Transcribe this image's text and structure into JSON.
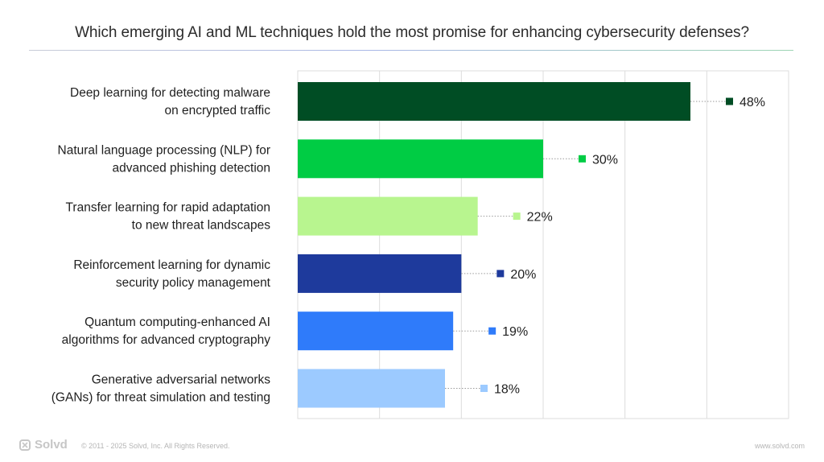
{
  "title": "Which emerging AI and ML techniques hold the most promise for enhancing cybersecurity defenses?",
  "chart_data": {
    "type": "bar",
    "orientation": "horizontal",
    "categories": [
      [
        "Deep learning for detecting malware",
        "on encrypted traffic"
      ],
      [
        "Natural language processing (NLP) for",
        "advanced phishing detection"
      ],
      [
        "Transfer learning for rapid adaptation",
        "to new threat landscapes"
      ],
      [
        "Reinforcement learning for dynamic",
        "security policy management"
      ],
      [
        "Quantum computing-enhanced AI",
        "algorithms for advanced cryptography"
      ],
      [
        "Generative adversarial networks",
        "(GANs) for threat simulation and testing"
      ]
    ],
    "values": [
      48,
      30,
      22,
      20,
      19,
      18
    ],
    "value_labels": [
      "48%",
      "30%",
      "22%",
      "20%",
      "19%",
      "18%"
    ],
    "colors": [
      "#004d24",
      "#00cc44",
      "#b8f58f",
      "#1e3a9c",
      "#2f7bfa",
      "#9ccaff"
    ],
    "xlim": [
      0,
      60
    ],
    "grid": true,
    "legend": "none"
  },
  "footer": {
    "brand": "Solvd",
    "copyright": "© 2011 - 2025 Solvd, Inc. All Rights Reserved.",
    "website": "www.solvd.com"
  }
}
